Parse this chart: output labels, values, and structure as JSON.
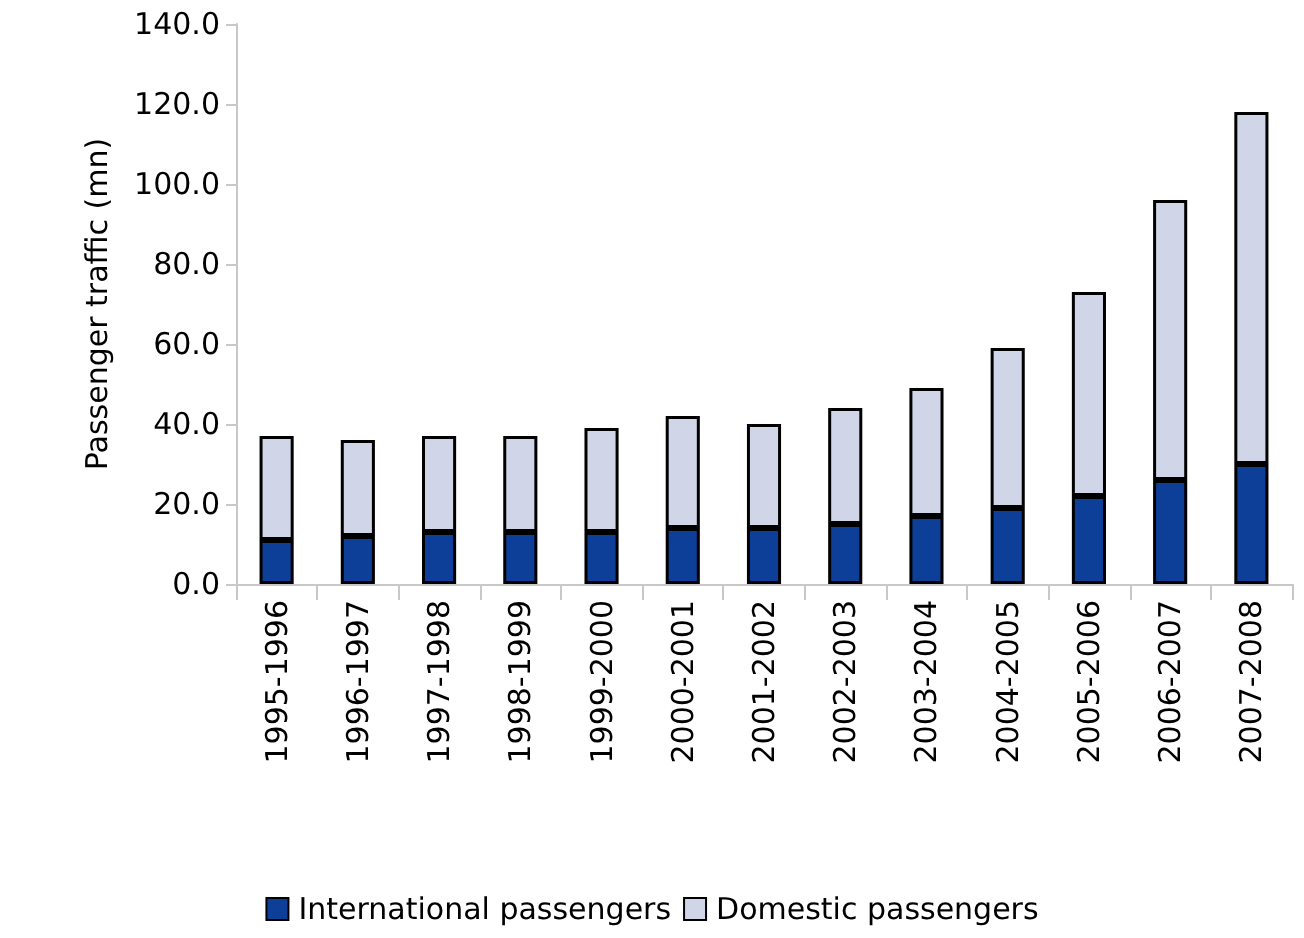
{
  "chart_data": {
    "type": "bar",
    "stacked": true,
    "ylabel": "Passenger traffic (mn)",
    "categories": [
      "1995-1996",
      "1996-1997",
      "1997-1998",
      "1998-1999",
      "1999-2000",
      "2000-2001",
      "2001-2002",
      "2002-2003",
      "2003-2004",
      "2004-2005",
      "2005-2006",
      "2006-2007",
      "2007-2008"
    ],
    "series": [
      {
        "name": "International passengers",
        "color": "#0d3f98",
        "values": [
          11,
          12,
          13,
          13,
          13,
          14,
          14,
          15,
          17,
          19,
          22,
          26,
          30
        ]
      },
      {
        "name": "Domestic passengers",
        "color": "#d0d5e8",
        "values": [
          26,
          24,
          24,
          24,
          26,
          28,
          26,
          29,
          32,
          40,
          51,
          70,
          88
        ]
      }
    ],
    "ylim": [
      0,
      140
    ],
    "yticks": [
      {
        "value": 0,
        "label": "0.0"
      },
      {
        "value": 20,
        "label": "20.0"
      },
      {
        "value": 40,
        "label": "40.0"
      },
      {
        "value": 60,
        "label": "60.0"
      },
      {
        "value": 80,
        "label": "80.0"
      },
      {
        "value": 100,
        "label": "100.0"
      },
      {
        "value": 120,
        "label": "120.0"
      },
      {
        "value": 140,
        "label": "140.0"
      }
    ],
    "grid": false,
    "legend": "bottom"
  }
}
